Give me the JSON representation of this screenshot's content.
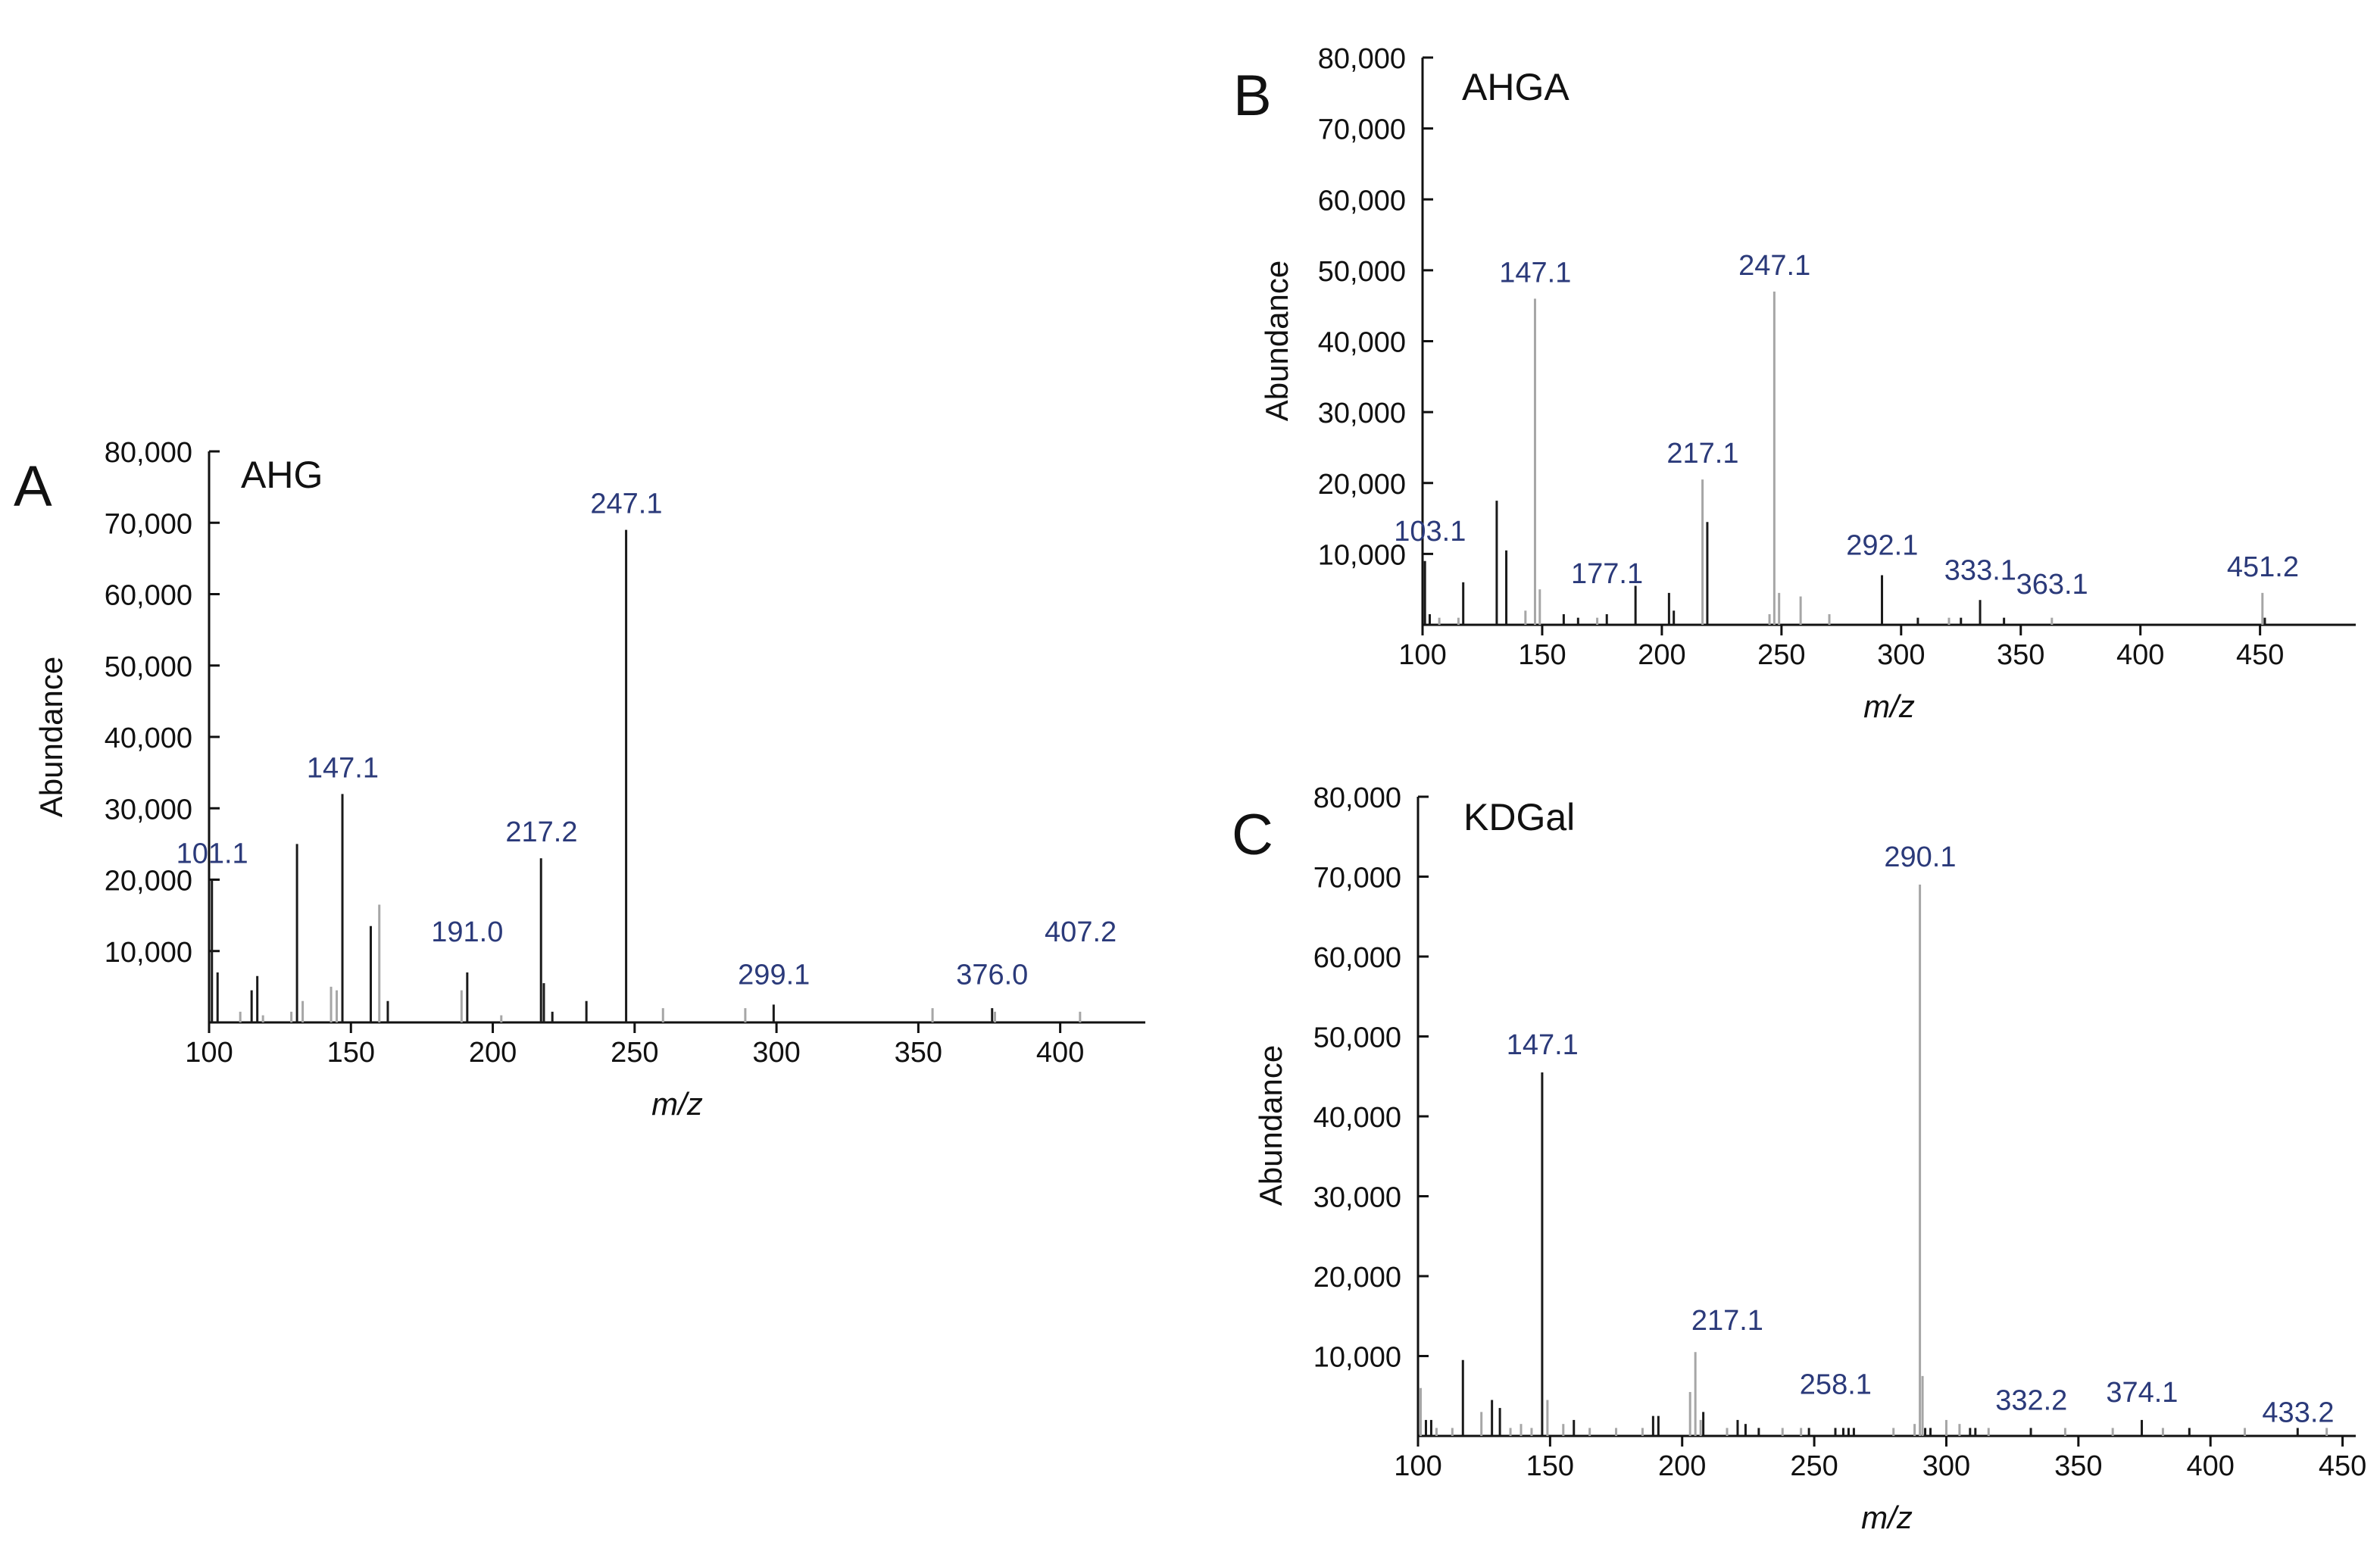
{
  "figure": "GC-MS mass spectra",
  "chart_data": [
    {
      "type": "bar",
      "panel": "A",
      "title": "AHG",
      "xlabel": "m/z",
      "ylabel": "Abundance",
      "xlim": [
        100,
        430
      ],
      "ylim": [
        0,
        80000
      ],
      "xticks": [
        100,
        150,
        200,
        250,
        300,
        350,
        400
      ],
      "yticks": [
        10000,
        20000,
        30000,
        40000,
        50000,
        60000,
        70000,
        80000
      ],
      "xtick_labels": [
        "100",
        "150",
        "200",
        "250",
        "300",
        "350",
        "400"
      ],
      "ytick_labels": [
        "10,000",
        "20,000",
        "30,000",
        "40,000",
        "50,000",
        "60,000",
        "70,000",
        "80,000"
      ],
      "annotations": [
        {
          "text": "101.1",
          "x": 101.1
        },
        {
          "text": "147.1",
          "x": 147.1
        },
        {
          "text": "191.0",
          "x": 191.0
        },
        {
          "text": "217.2",
          "x": 217.2
        },
        {
          "text": "247.1",
          "x": 247.1
        },
        {
          "text": "299.1",
          "x": 299.1
        },
        {
          "text": "376.0",
          "x": 376.0
        },
        {
          "text": "407.2",
          "x": 407.2
        }
      ],
      "peaks": {
        "dark": [
          [
            101,
            20000
          ],
          [
            103,
            7000
          ],
          [
            115,
            4500
          ],
          [
            117,
            6500
          ],
          [
            131,
            25000
          ],
          [
            147,
            32000
          ],
          [
            157,
            13500
          ],
          [
            163,
            3000
          ],
          [
            191,
            7000
          ],
          [
            217,
            23000
          ],
          [
            218,
            5500
          ],
          [
            221,
            1500
          ],
          [
            233,
            3000
          ],
          [
            247,
            69000
          ],
          [
            299,
            2500
          ],
          [
            376,
            2000
          ]
        ],
        "light": [
          [
            111,
            1500
          ],
          [
            119,
            1000
          ],
          [
            129,
            1500
          ],
          [
            133,
            3000
          ],
          [
            143,
            5000
          ],
          [
            145,
            4500
          ],
          [
            160,
            16500
          ],
          [
            189,
            4500
          ],
          [
            203,
            1000
          ],
          [
            260,
            2000
          ],
          [
            289,
            2000
          ],
          [
            355,
            2000
          ],
          [
            377,
            1500
          ],
          [
            407,
            1500
          ]
        ]
      }
    },
    {
      "type": "bar",
      "panel": "B",
      "title": "AHGA",
      "xlabel": "m/z",
      "ylabel": "Abundance",
      "xlim": [
        100,
        490
      ],
      "ylim": [
        0,
        80000
      ],
      "xticks": [
        100,
        150,
        200,
        250,
        300,
        350,
        400,
        450
      ],
      "yticks": [
        10000,
        20000,
        30000,
        40000,
        50000,
        60000,
        70000,
        80000
      ],
      "xtick_labels": [
        "100",
        "150",
        "200",
        "250",
        "300",
        "350",
        "400",
        "450"
      ],
      "ytick_labels": [
        "10,000",
        "20,000",
        "30,000",
        "40,000",
        "50,000",
        "60,000",
        "70,000",
        "80,000"
      ],
      "annotations": [
        {
          "text": "103.1",
          "x": 103.1
        },
        {
          "text": "147.1",
          "x": 147.1
        },
        {
          "text": "177.1",
          "x": 177.1
        },
        {
          "text": "217.1",
          "x": 217.1
        },
        {
          "text": "247.1",
          "x": 247.1
        },
        {
          "text": "292.1",
          "x": 292.1
        },
        {
          "text": "333.1",
          "x": 333.1
        },
        {
          "text": "363.1",
          "x": 363.1
        },
        {
          "text": "451.2",
          "x": 451.2
        }
      ],
      "peaks": {
        "dark": [
          [
            101,
            9000
          ],
          [
            103,
            1500
          ],
          [
            117,
            6000
          ],
          [
            131,
            17500
          ],
          [
            135,
            10500
          ],
          [
            159,
            1500
          ],
          [
            165,
            1000
          ],
          [
            177,
            1500
          ],
          [
            189,
            5500
          ],
          [
            203,
            4500
          ],
          [
            205,
            2000
          ],
          [
            219,
            14500
          ],
          [
            292,
            7000
          ],
          [
            307,
            1000
          ],
          [
            325,
            1000
          ],
          [
            333,
            3500
          ],
          [
            343,
            1000
          ],
          [
            452,
            1000
          ]
        ],
        "light": [
          [
            107,
            1000
          ],
          [
            115,
            1000
          ],
          [
            143,
            2000
          ],
          [
            147,
            46000
          ],
          [
            149,
            5000
          ],
          [
            173,
            1000
          ],
          [
            217,
            20500
          ],
          [
            245,
            1500
          ],
          [
            247,
            47000
          ],
          [
            249,
            4500
          ],
          [
            258,
            4000
          ],
          [
            270,
            1500
          ],
          [
            320,
            1000
          ],
          [
            363,
            1000
          ],
          [
            451,
            4500
          ]
        ]
      }
    },
    {
      "type": "bar",
      "panel": "C",
      "title": "KDGal",
      "xlabel": "m/z",
      "ylabel": "Abundance",
      "xlim": [
        100,
        455
      ],
      "ylim": [
        0,
        80000
      ],
      "xticks": [
        100,
        150,
        200,
        250,
        300,
        350,
        400,
        450
      ],
      "yticks": [
        10000,
        20000,
        30000,
        40000,
        50000,
        60000,
        70000,
        80000
      ],
      "xtick_labels": [
        "100",
        "150",
        "200",
        "250",
        "300",
        "350",
        "400",
        "450"
      ],
      "ytick_labels": [
        "10,000",
        "20,000",
        "30,000",
        "40,000",
        "50,000",
        "60,000",
        "70,000",
        "80,000"
      ],
      "annotations": [
        {
          "text": "147.1",
          "x": 147.1
        },
        {
          "text": "217.1",
          "x": 217.1
        },
        {
          "text": "258.1",
          "x": 258.1
        },
        {
          "text": "290.1",
          "x": 290.1
        },
        {
          "text": "332.2",
          "x": 332.2
        },
        {
          "text": "374.1",
          "x": 374.1
        },
        {
          "text": "433.2",
          "x": 433.2
        }
      ],
      "peaks": {
        "dark": [
          [
            103,
            2000
          ],
          [
            105,
            2000
          ],
          [
            117,
            9500
          ],
          [
            128,
            4500
          ],
          [
            131,
            3500
          ],
          [
            147,
            45500
          ],
          [
            159,
            2000
          ],
          [
            189,
            2500
          ],
          [
            191,
            2500
          ],
          [
            208,
            3000
          ],
          [
            221,
            2000
          ],
          [
            224,
            1500
          ],
          [
            229,
            1000
          ],
          [
            248,
            1000
          ],
          [
            258,
            1000
          ],
          [
            261,
            1000
          ],
          [
            263,
            1000
          ],
          [
            265,
            1000
          ],
          [
            292,
            1000
          ],
          [
            294,
            1000
          ],
          [
            309,
            1000
          ],
          [
            311,
            1000
          ],
          [
            332,
            1000
          ],
          [
            374,
            2000
          ],
          [
            392,
            1000
          ],
          [
            433,
            1000
          ]
        ],
        "light": [
          [
            101,
            6000
          ],
          [
            107,
            1000
          ],
          [
            113,
            1000
          ],
          [
            124,
            3000
          ],
          [
            135,
            1000
          ],
          [
            139,
            1500
          ],
          [
            143,
            1000
          ],
          [
            149,
            4500
          ],
          [
            155,
            1500
          ],
          [
            165,
            1000
          ],
          [
            175,
            1000
          ],
          [
            185,
            1000
          ],
          [
            203,
            5500
          ],
          [
            205,
            10500
          ],
          [
            207,
            2000
          ],
          [
            217,
            1000
          ],
          [
            238,
            1000
          ],
          [
            245,
            1000
          ],
          [
            280,
            1000
          ],
          [
            288,
            1500
          ],
          [
            290,
            69000
          ],
          [
            291,
            7500
          ],
          [
            300,
            2000
          ],
          [
            305,
            1500
          ],
          [
            316,
            1000
          ],
          [
            345,
            1000
          ],
          [
            363,
            1000
          ],
          [
            382,
            1000
          ],
          [
            413,
            1000
          ],
          [
            444,
            1000
          ]
        ]
      }
    }
  ]
}
